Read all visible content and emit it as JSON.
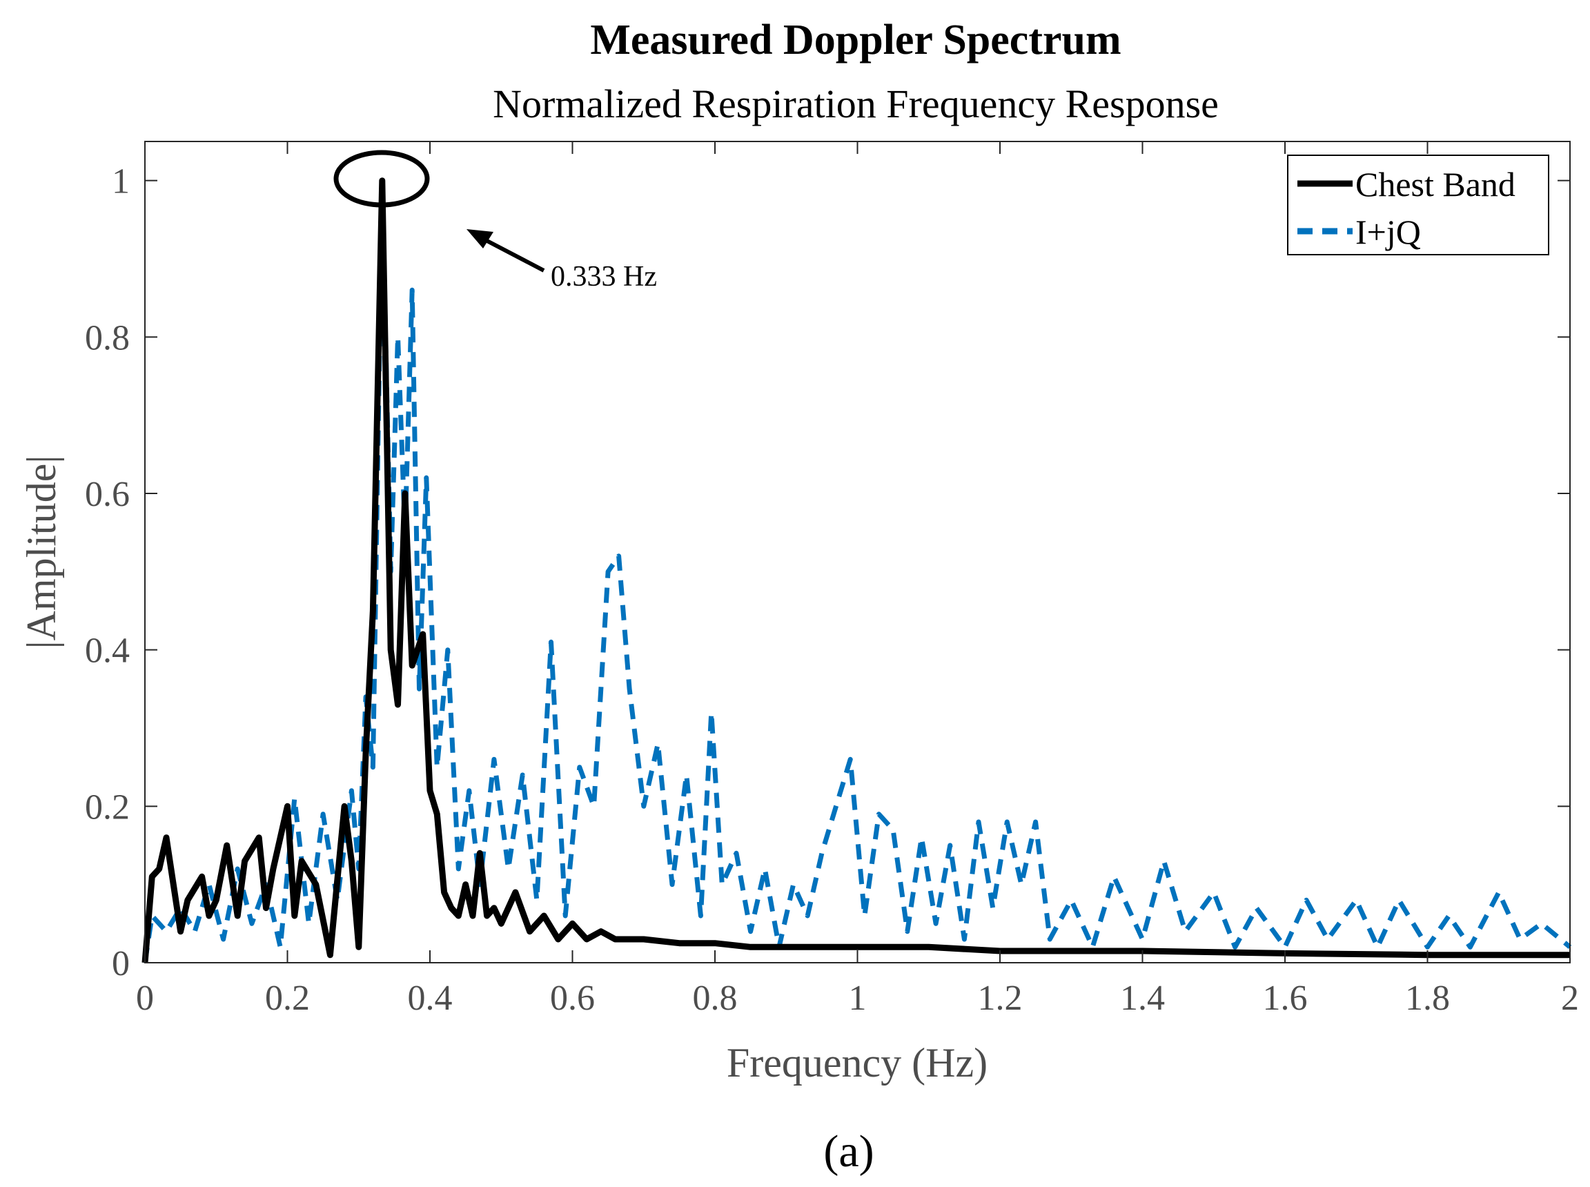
{
  "chart_data": {
    "type": "line",
    "title": "Measured Doppler Spectrum",
    "subtitle": "Normalized Respiration Frequency Response",
    "xlabel": "Frequency (Hz)",
    "ylabel": "|Amplitude|",
    "xlim": [
      0,
      2
    ],
    "ylim": [
      0,
      1.05
    ],
    "xticks": [
      "0",
      "0.2",
      "0.4",
      "0.6",
      "0.8",
      "1",
      "1.2",
      "1.4",
      "1.6",
      "1.8",
      "2"
    ],
    "yticks": [
      "0",
      "0.2",
      "0.4",
      "0.6",
      "0.8",
      "1"
    ],
    "legend_position": "top-right",
    "annotation": {
      "text": "0.333 Hz",
      "peak_x": 0.333,
      "peak_y": 1.0
    },
    "caption": "(a)",
    "series": [
      {
        "name": "Chest Band",
        "color": "#000000",
        "style": "solid",
        "x": [
          0,
          0.01,
          0.02,
          0.03,
          0.04,
          0.05,
          0.06,
          0.08,
          0.09,
          0.1,
          0.115,
          0.13,
          0.14,
          0.16,
          0.17,
          0.18,
          0.2,
          0.21,
          0.22,
          0.24,
          0.26,
          0.28,
          0.29,
          0.3,
          0.31,
          0.32,
          0.333,
          0.345,
          0.355,
          0.365,
          0.375,
          0.39,
          0.4,
          0.41,
          0.42,
          0.43,
          0.44,
          0.45,
          0.46,
          0.47,
          0.48,
          0.49,
          0.5,
          0.52,
          0.54,
          0.56,
          0.58,
          0.6,
          0.62,
          0.64,
          0.66,
          0.7,
          0.75,
          0.8,
          0.85,
          0.9,
          1.0,
          1.1,
          1.2,
          1.4,
          1.6,
          1.8,
          2.0
        ],
        "y": [
          0.0,
          0.11,
          0.12,
          0.16,
          0.1,
          0.04,
          0.08,
          0.11,
          0.06,
          0.08,
          0.15,
          0.06,
          0.13,
          0.16,
          0.07,
          0.12,
          0.2,
          0.06,
          0.13,
          0.1,
          0.01,
          0.2,
          0.13,
          0.02,
          0.27,
          0.45,
          1.0,
          0.4,
          0.33,
          0.6,
          0.38,
          0.42,
          0.22,
          0.19,
          0.09,
          0.07,
          0.06,
          0.1,
          0.06,
          0.14,
          0.06,
          0.07,
          0.05,
          0.09,
          0.04,
          0.06,
          0.03,
          0.05,
          0.03,
          0.04,
          0.03,
          0.03,
          0.025,
          0.025,
          0.02,
          0.02,
          0.02,
          0.02,
          0.015,
          0.015,
          0.012,
          0.01,
          0.01
        ]
      },
      {
        "name": "I+jQ",
        "color": "#0072bd",
        "style": "dashed",
        "x": [
          0,
          0.01,
          0.03,
          0.05,
          0.07,
          0.09,
          0.11,
          0.13,
          0.15,
          0.17,
          0.19,
          0.21,
          0.23,
          0.25,
          0.27,
          0.29,
          0.3,
          0.31,
          0.32,
          0.333,
          0.345,
          0.355,
          0.365,
          0.375,
          0.385,
          0.395,
          0.41,
          0.425,
          0.44,
          0.455,
          0.47,
          0.49,
          0.51,
          0.53,
          0.55,
          0.57,
          0.59,
          0.61,
          0.63,
          0.65,
          0.665,
          0.68,
          0.7,
          0.72,
          0.74,
          0.76,
          0.78,
          0.795,
          0.81,
          0.83,
          0.85,
          0.87,
          0.89,
          0.91,
          0.93,
          0.95,
          0.97,
          0.99,
          1.01,
          1.03,
          1.05,
          1.07,
          1.09,
          1.11,
          1.13,
          1.15,
          1.17,
          1.19,
          1.21,
          1.23,
          1.25,
          1.27,
          1.3,
          1.33,
          1.36,
          1.4,
          1.43,
          1.46,
          1.5,
          1.53,
          1.56,
          1.6,
          1.63,
          1.66,
          1.7,
          1.73,
          1.76,
          1.8,
          1.83,
          1.86,
          1.9,
          1.93,
          1.96,
          2.0
        ],
        "y": [
          0.0,
          0.06,
          0.04,
          0.07,
          0.04,
          0.1,
          0.03,
          0.12,
          0.05,
          0.1,
          0.02,
          0.21,
          0.05,
          0.19,
          0.08,
          0.22,
          0.12,
          0.34,
          0.25,
          1.0,
          0.5,
          0.8,
          0.55,
          0.86,
          0.35,
          0.62,
          0.25,
          0.4,
          0.12,
          0.22,
          0.1,
          0.26,
          0.12,
          0.24,
          0.08,
          0.41,
          0.06,
          0.25,
          0.2,
          0.5,
          0.52,
          0.35,
          0.2,
          0.28,
          0.1,
          0.24,
          0.06,
          0.32,
          0.1,
          0.14,
          0.04,
          0.12,
          0.02,
          0.1,
          0.06,
          0.14,
          0.2,
          0.26,
          0.06,
          0.19,
          0.17,
          0.04,
          0.16,
          0.05,
          0.15,
          0.03,
          0.18,
          0.07,
          0.18,
          0.1,
          0.18,
          0.03,
          0.08,
          0.02,
          0.11,
          0.03,
          0.13,
          0.04,
          0.09,
          0.02,
          0.07,
          0.02,
          0.08,
          0.03,
          0.08,
          0.02,
          0.08,
          0.02,
          0.06,
          0.02,
          0.09,
          0.03,
          0.05,
          0.02
        ]
      }
    ]
  }
}
